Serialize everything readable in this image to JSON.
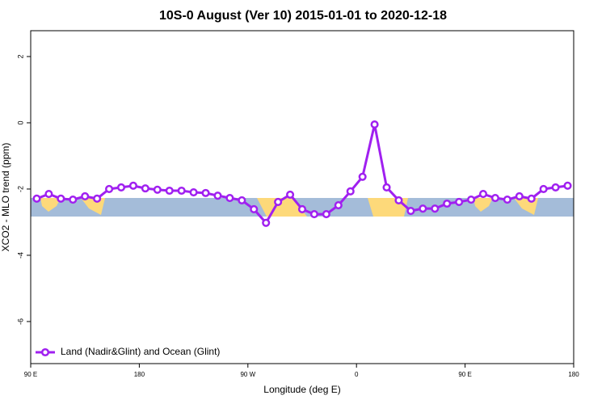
{
  "chart_data": {
    "type": "line",
    "title": "10S-0 August (Ver 10)   2015-01-01 to 2020-12-18",
    "x_label": "Longitude (deg E)",
    "y_label": "XCO2 - MLO trend (ppm)",
    "x": [
      95,
      105,
      115,
      125,
      135,
      145,
      155,
      165,
      175,
      185,
      195,
      205,
      215,
      225,
      235,
      245,
      255,
      265,
      275,
      285,
      295,
      305,
      315,
      325,
      335,
      345,
      355,
      365,
      375,
      385,
      395,
      405,
      415,
      425,
      435,
      445,
      455,
      465,
      475,
      485,
      495,
      505,
      515,
      525,
      535
    ],
    "series": [
      {
        "name": "Land (Nadir&Glint) and Ocean (Glint)",
        "color": "#a020f0",
        "values": [
          -2.29,
          -2.15,
          -2.29,
          -2.32,
          -2.22,
          -2.29,
          -2.0,
          -1.95,
          -1.9,
          -1.98,
          -2.02,
          -2.05,
          -2.05,
          -2.1,
          -2.12,
          -2.2,
          -2.27,
          -2.34,
          -2.61,
          -3.02,
          -2.39,
          -2.17,
          -2.61,
          -2.76,
          -2.76,
          -2.49,
          -2.07,
          -1.63,
          -0.05,
          -1.95,
          -2.34,
          -2.66,
          -2.59,
          -2.59,
          -2.44,
          -2.39,
          -2.32,
          -2.15,
          -2.27,
          -2.32,
          -2.22,
          -2.29,
          -2.0,
          -1.95,
          -1.9
        ]
      }
    ],
    "xlim": [
      90,
      540
    ],
    "xticks": [
      {
        "value": 90,
        "label": "90 E"
      },
      180,
      {
        "value": 270,
        "label": "90 W"
      },
      {
        "value": 360,
        "label": "0"
      },
      {
        "value": 450,
        "label": "90 E"
      },
      {
        "value": 540,
        "label": "180"
      }
    ],
    "ylim": [
      -7.27,
      2.78
    ],
    "yticks": [
      2,
      0,
      -2,
      -4,
      -6
    ],
    "legend": "bottom-left"
  }
}
